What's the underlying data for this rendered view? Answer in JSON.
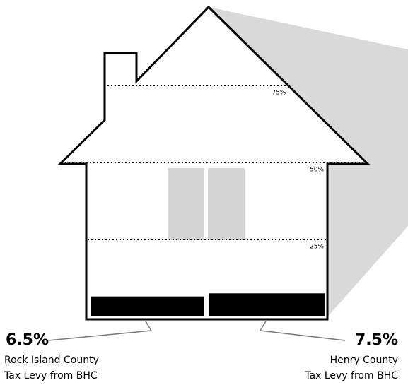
{
  "chart_data": {
    "type": "bar",
    "categories": [
      "Rock Island County",
      "Henry County"
    ],
    "category_notes": [
      "Tax Levy from BHC",
      "Tax Levy from BHC"
    ],
    "values": [
      6.5,
      7.5
    ],
    "value_labels": [
      "6.5%",
      "7.5%"
    ],
    "color": "#000000",
    "ylim": [
      0,
      100
    ],
    "yticks": [
      {
        "value": 25,
        "label": "25%"
      },
      {
        "value": 50,
        "label": "50%"
      },
      {
        "value": 75,
        "label": "75%"
      }
    ],
    "grid": true
  }
}
